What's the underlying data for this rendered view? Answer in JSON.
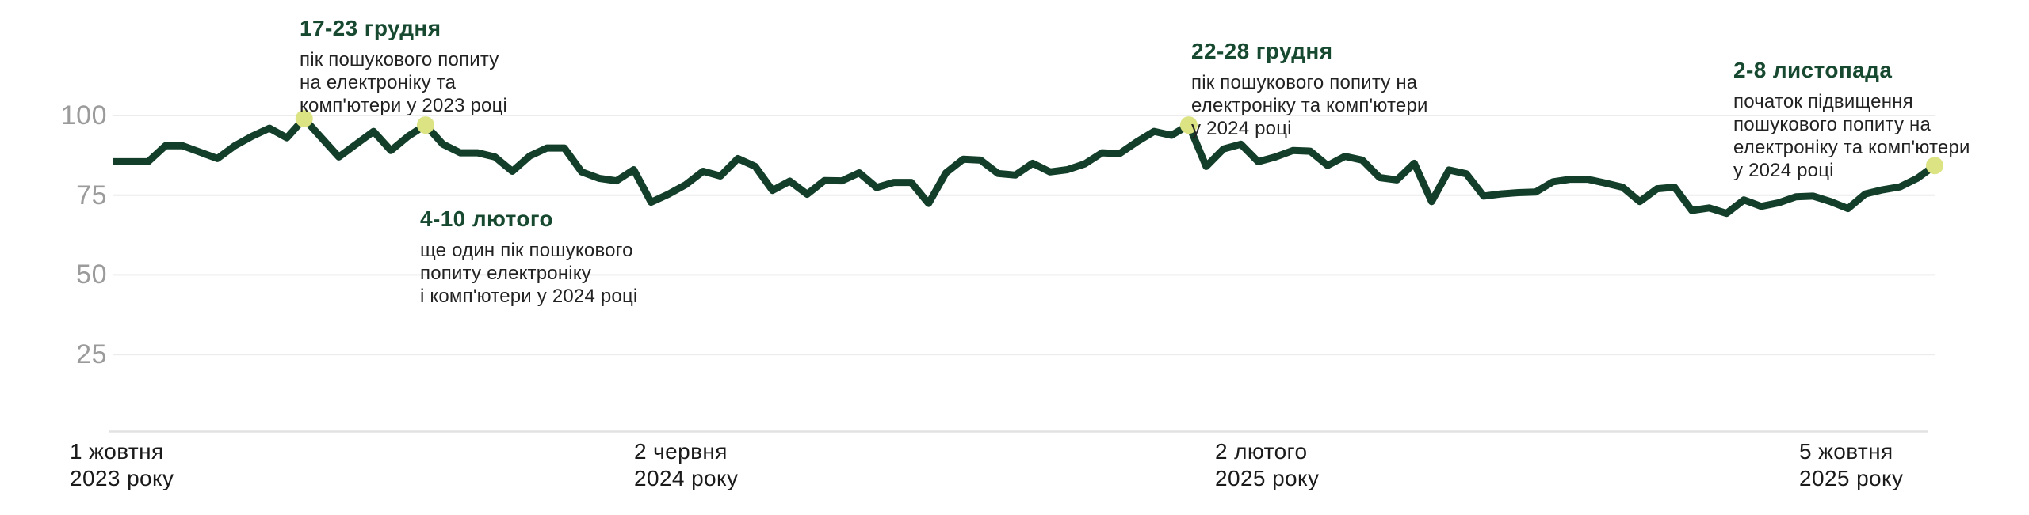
{
  "chart_data": {
    "type": "line",
    "title": "",
    "ylim": [
      0,
      100
    ],
    "grid": true,
    "y_ticks": [
      100,
      75,
      50,
      25
    ],
    "x_tick_labels": [
      {
        "line1": "1 жовтня",
        "line2": "2023 року"
      },
      {
        "line1": "2 червня",
        "line2": "2024 року"
      },
      {
        "line1": "2 лютого",
        "line2": "2025 року"
      },
      {
        "line1": "5 жовтня",
        "line2": "2025 року"
      }
    ],
    "values": [
      85.5,
      85.5,
      85.5,
      90.5,
      90.5,
      88.5,
      86.5,
      90.5,
      93.5,
      96,
      93,
      99,
      93,
      87,
      91,
      95,
      89,
      93.5,
      97,
      91,
      88.3,
      88.3,
      87,
      82.5,
      87.3,
      89.8,
      89.8,
      82.3,
      80.3,
      79.5,
      83,
      72.8,
      75.3,
      78.3,
      82.5,
      81,
      86.5,
      84,
      76.5,
      79.4,
      75.3,
      79.6,
      79.5,
      82,
      77.4,
      79,
      79,
      72.4,
      82,
      86.3,
      86,
      81.8,
      81.3,
      85,
      82.3,
      83,
      84.8,
      88.3,
      88,
      91.7,
      95,
      93.8,
      97,
      84,
      89.5,
      91,
      85.5,
      87,
      89,
      88.8,
      84.3,
      87.2,
      86,
      80.5,
      79.8,
      85,
      73,
      82.9,
      81.7,
      74.7,
      75.4,
      75.8,
      76,
      79.2,
      80,
      80,
      78.8,
      77.5,
      73,
      77,
      77.5,
      70.2,
      71,
      69.3,
      73.5,
      71.5,
      72.6,
      74.5,
      74.7,
      73,
      70.8,
      75.4,
      76.7,
      77.6,
      80.3,
      84.3
    ],
    "line_color": "#133f2a",
    "marker_color": "#dbe383",
    "grid_color": "#ececec",
    "axis_line_color": "#e2e2e2",
    "annotation_title_color": "#16492f",
    "annotations": [
      {
        "title": "17-23 грудня",
        "body": "пік пошукового попиту\nна електроніку та\nкомп'ютери у 2023 році",
        "marker_index": 11
      },
      {
        "title": "4-10 лютого",
        "body": "ще один пік пошукового\nпопиту електроніку\nі комп'ютери у 2024 році",
        "marker_index": 18
      },
      {
        "title": "22-28 грудня",
        "body": "пік пошукового попиту на\nелектроніку та комп'ютери\nу 2024 році",
        "marker_index": 62
      },
      {
        "title": "2-8 листопада",
        "body": "початок підвищення\nпошукового попиту на\nелектроніку та комп'ютери\nу 2024 році",
        "marker_index": 105
      }
    ]
  }
}
